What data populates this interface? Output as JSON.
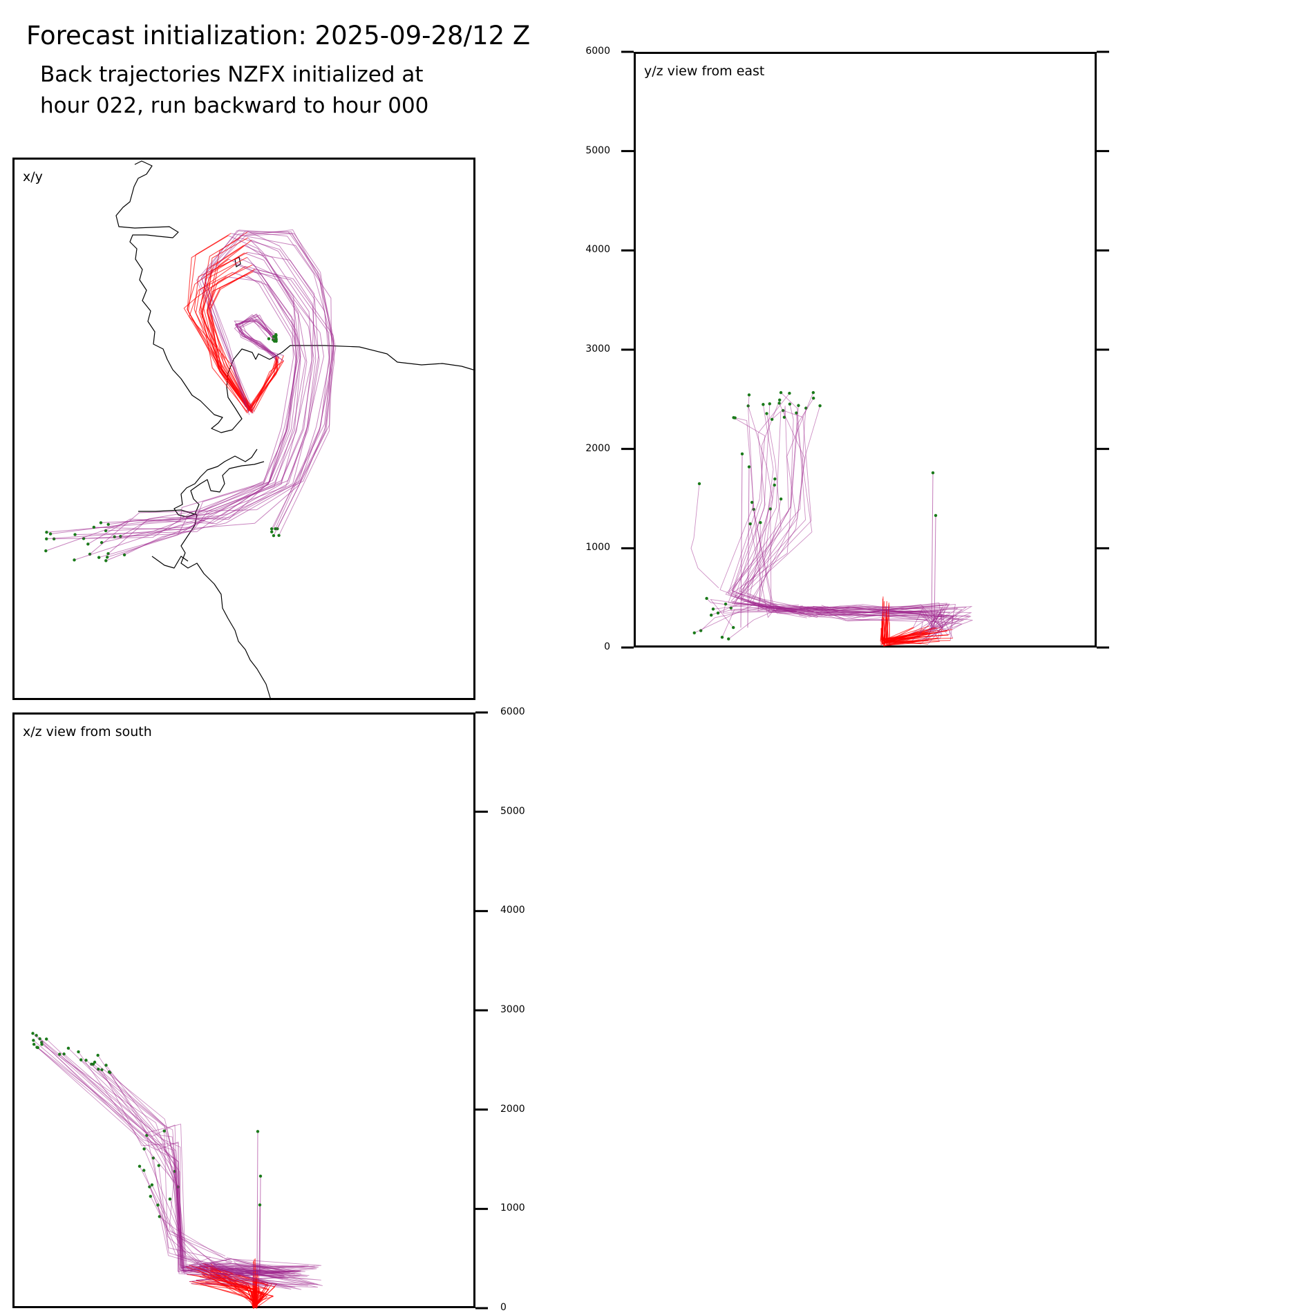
{
  "title": "Forecast initialization: 2025-09-28/12 Z",
  "subtitle_line1": "Back trajectories NZFX initialized at",
  "subtitle_line2": "hour 022, run backward to hour 000",
  "colors": {
    "early_segment": "#ff0000",
    "late_segment": "#9b1f8a",
    "endpoint_marker": "#1a7a1a",
    "coastline": "#000000"
  },
  "chart_data": [
    {
      "type": "line",
      "id": "xy",
      "panel_label": "x/y",
      "description_series": "ensemble of back trajectories, map view with coastline",
      "x_ticks": [],
      "y_ticks": []
    },
    {
      "type": "line",
      "id": "yz",
      "panel_label": "y/z view from east",
      "ylabel": "",
      "ylim": [
        0,
        6000
      ],
      "y_ticks": [
        "0",
        "1000",
        "2000",
        "3000",
        "4000",
        "5000",
        "6000"
      ]
    },
    {
      "type": "line",
      "id": "xz",
      "panel_label": "x/z view from south",
      "ylabel": "",
      "ylim": [
        0,
        6000
      ],
      "y_ticks": [
        "0",
        "1000",
        "2000",
        "3000",
        "4000",
        "5000",
        "6000"
      ]
    }
  ]
}
